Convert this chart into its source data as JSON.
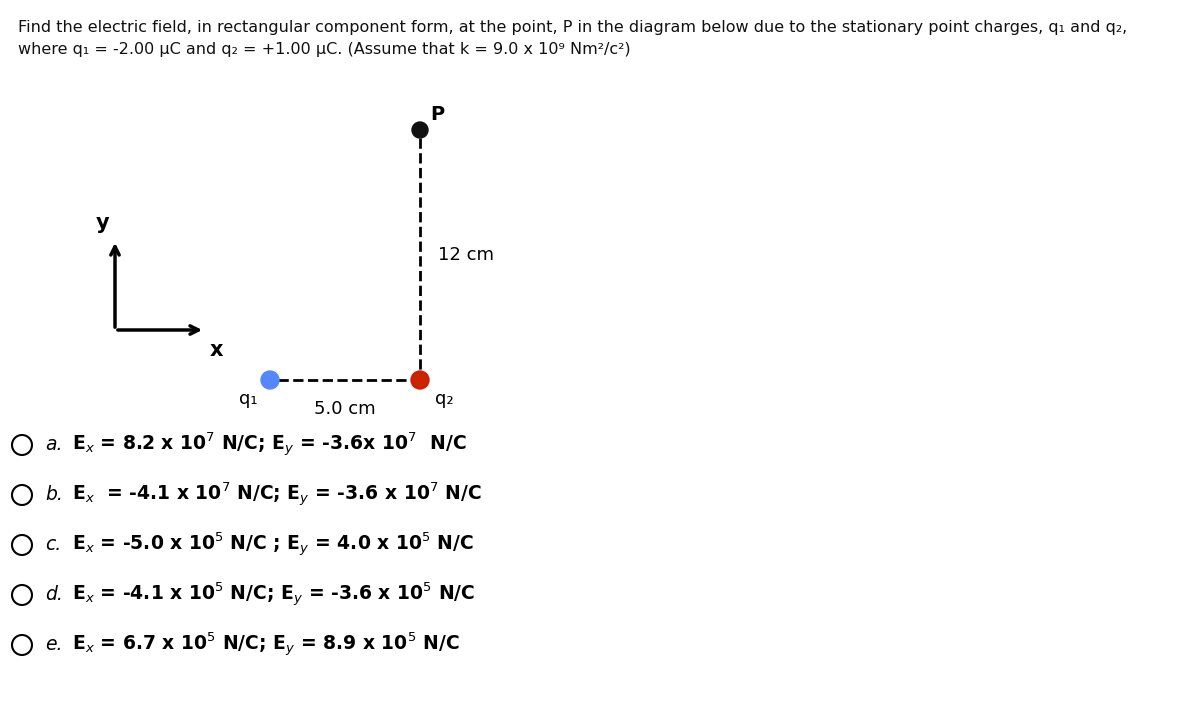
{
  "title_line1": "Find the electric field, in rectangular component form, at the point, P in the diagram below due to the stationary point charges, q₁ and q₂,",
  "title_line2": "where q₁ = -2.00 μC and q₂ = +1.00 μC. (Assume that k = 9.0 x 10⁹ Nm²/c²)",
  "choices": [
    {
      "label": "a.",
      "text": "E$_{x}$ = 8.2 x 10$^{7}$ N/C; E$_{y}$ = -3.6x 10$^{7}$  N/C"
    },
    {
      "label": "b.",
      "text": "E$_{x}$  = -4.1 x 10$^{7}$ N/C; E$_{y}$ = -3.6 x 10$^{7}$ N/C"
    },
    {
      "label": "c.",
      "text": "E$_{x}$ = -5.0 x 10$^{5}$ N/C ; E$_{y}$ = 4.0 x 10$^{5}$ N/C"
    },
    {
      "label": "d.",
      "text": "E$_{x}$ = -4.1 x 10$^{5}$ N/C; E$_{y}$ = -3.6 x 10$^{5}$ N/C"
    },
    {
      "label": "e.",
      "text": "E$_{x}$ = 6.7 x 10$^{5}$ N/C; E$_{y}$ = 8.9 x 10$^{5}$ N/C"
    }
  ],
  "q1_color": "#5588ff",
  "q2_color": "#cc2200",
  "P_color": "#111111",
  "text_color": "#111111",
  "bg_color": "#ffffff",
  "font_size_title": 11.5,
  "font_size_choice": 13.5,
  "font_size_diagram": 13
}
